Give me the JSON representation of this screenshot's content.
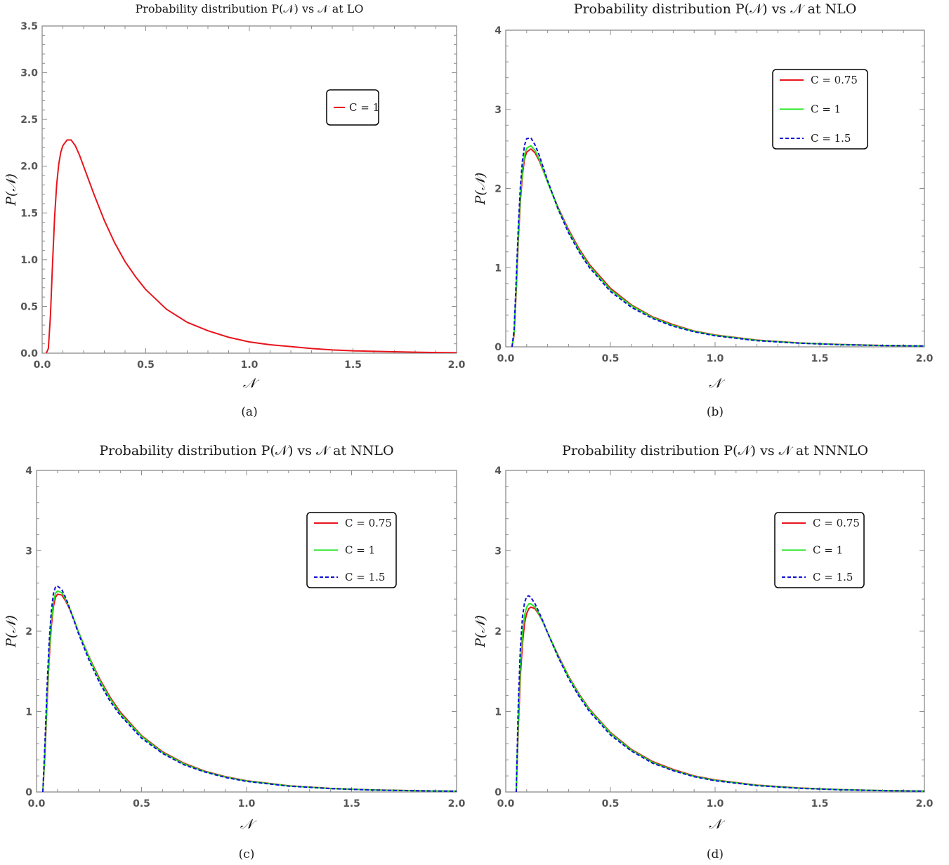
{
  "colors": {
    "c075": "#e8141b",
    "c1": "#22e622",
    "c15": "#1010d6",
    "frame": "#8c8c8c"
  },
  "chart_data": [
    {
      "type": "line",
      "title": "Probability distribution P(𝒩) vs 𝒩 at LO",
      "caption": "(a)",
      "xlabel": "𝒩",
      "ylabel": "P(𝒩)",
      "xlim": [
        0,
        2.0
      ],
      "ylim": [
        0,
        3.5
      ],
      "xticks": [
        "0.0",
        "0.5",
        "1.0",
        "1.5",
        "2.0"
      ],
      "yticks": [
        "0.0",
        "0.5",
        "1.0",
        "1.5",
        "2.0",
        "2.5",
        "3.0",
        "3.5"
      ],
      "legend_position": "top-right",
      "series": [
        {
          "name": "C = 1",
          "color": "#e8141b",
          "dash": false,
          "x": [
            0.02,
            0.03,
            0.04,
            0.05,
            0.06,
            0.07,
            0.08,
            0.09,
            0.1,
            0.12,
            0.14,
            0.16,
            0.18,
            0.2,
            0.25,
            0.3,
            0.35,
            0.4,
            0.45,
            0.5,
            0.6,
            0.7,
            0.8,
            0.9,
            1.0,
            1.1,
            1.2,
            1.3,
            1.4,
            1.5,
            1.6,
            1.7,
            1.8,
            1.9,
            2.0
          ],
          "y": [
            0.0,
            0.05,
            0.4,
            0.95,
            1.45,
            1.8,
            2.02,
            2.15,
            2.22,
            2.28,
            2.28,
            2.22,
            2.12,
            2.0,
            1.7,
            1.42,
            1.18,
            0.98,
            0.82,
            0.68,
            0.47,
            0.33,
            0.24,
            0.17,
            0.12,
            0.09,
            0.07,
            0.05,
            0.035,
            0.025,
            0.02,
            0.015,
            0.01,
            0.007,
            0.005
          ]
        }
      ]
    },
    {
      "type": "line",
      "title": "Probability distribution P(𝒩) vs 𝒩 at NLO",
      "caption": "(b)",
      "xlabel": "𝒩",
      "ylabel": "P(𝒩)",
      "xlim": [
        0,
        2.0
      ],
      "ylim": [
        0,
        4
      ],
      "xticks": [
        "0.0",
        "0.5",
        "1.0",
        "1.5",
        "2.0"
      ],
      "yticks": [
        "0",
        "1",
        "2",
        "3",
        "4"
      ],
      "legend_position": "top-right",
      "series": [
        {
          "name": "C = 0.75",
          "color": "#e8141b",
          "dash": false,
          "x": [
            0.03,
            0.04,
            0.05,
            0.06,
            0.07,
            0.08,
            0.09,
            0.1,
            0.12,
            0.14,
            0.16,
            0.18,
            0.2,
            0.25,
            0.3,
            0.35,
            0.4,
            0.5,
            0.6,
            0.7,
            0.8,
            0.9,
            1.0,
            1.2,
            1.4,
            1.6,
            1.8,
            2.0
          ],
          "y": [
            0.0,
            0.15,
            0.7,
            1.35,
            1.85,
            2.18,
            2.38,
            2.46,
            2.5,
            2.45,
            2.35,
            2.22,
            2.08,
            1.76,
            1.48,
            1.24,
            1.04,
            0.74,
            0.53,
            0.38,
            0.28,
            0.2,
            0.15,
            0.085,
            0.05,
            0.03,
            0.018,
            0.012
          ]
        },
        {
          "name": "C = 1",
          "color": "#22e622",
          "dash": false,
          "x": [
            0.03,
            0.04,
            0.05,
            0.06,
            0.07,
            0.08,
            0.09,
            0.1,
            0.12,
            0.14,
            0.16,
            0.18,
            0.2,
            0.25,
            0.3,
            0.35,
            0.4,
            0.5,
            0.6,
            0.7,
            0.8,
            0.9,
            1.0,
            1.2,
            1.4,
            1.6,
            1.8,
            2.0
          ],
          "y": [
            0.0,
            0.18,
            0.76,
            1.42,
            1.92,
            2.24,
            2.43,
            2.51,
            2.54,
            2.48,
            2.37,
            2.23,
            2.08,
            1.75,
            1.46,
            1.22,
            1.02,
            0.72,
            0.52,
            0.37,
            0.27,
            0.195,
            0.145,
            0.082,
            0.048,
            0.028,
            0.017,
            0.011
          ]
        },
        {
          "name": "C = 1.5",
          "color": "#1010d6",
          "dash": true,
          "x": [
            0.03,
            0.04,
            0.05,
            0.06,
            0.07,
            0.08,
            0.09,
            0.1,
            0.12,
            0.14,
            0.16,
            0.18,
            0.2,
            0.25,
            0.3,
            0.35,
            0.4,
            0.5,
            0.6,
            0.7,
            0.8,
            0.9,
            1.0,
            1.2,
            1.4,
            1.6,
            1.8,
            2.0
          ],
          "y": [
            0.0,
            0.22,
            0.85,
            1.52,
            2.03,
            2.36,
            2.55,
            2.63,
            2.64,
            2.55,
            2.42,
            2.26,
            2.1,
            1.74,
            1.44,
            1.2,
            1.0,
            0.7,
            0.5,
            0.36,
            0.26,
            0.19,
            0.14,
            0.078,
            0.046,
            0.027,
            0.016,
            0.01
          ]
        }
      ]
    },
    {
      "type": "line",
      "title": "Probability distribution P(𝒩) vs 𝒩 at NNLO",
      "caption": "(c)",
      "xlabel": "𝒩",
      "ylabel": "P(𝒩)",
      "xlim": [
        0,
        2.0
      ],
      "ylim": [
        0,
        4
      ],
      "xticks": [
        "0.0",
        "0.5",
        "1.0",
        "1.5",
        "2.0"
      ],
      "yticks": [
        "0",
        "1",
        "2",
        "3",
        "4"
      ],
      "legend_position": "top-right",
      "series": [
        {
          "name": "C = 0.75",
          "color": "#e8141b",
          "dash": false,
          "x": [
            0.03,
            0.04,
            0.05,
            0.06,
            0.07,
            0.08,
            0.09,
            0.1,
            0.12,
            0.14,
            0.16,
            0.18,
            0.2,
            0.25,
            0.3,
            0.35,
            0.4,
            0.5,
            0.6,
            0.7,
            0.8,
            0.9,
            1.0,
            1.2,
            1.4,
            1.6,
            1.8,
            2.0
          ],
          "y": [
            0.0,
            0.45,
            1.1,
            1.65,
            2.05,
            2.3,
            2.42,
            2.46,
            2.45,
            2.37,
            2.26,
            2.13,
            1.99,
            1.68,
            1.41,
            1.18,
            0.99,
            0.7,
            0.5,
            0.36,
            0.26,
            0.19,
            0.14,
            0.078,
            0.045,
            0.026,
            0.016,
            0.01
          ]
        },
        {
          "name": "C = 1",
          "color": "#22e622",
          "dash": false,
          "x": [
            0.03,
            0.04,
            0.05,
            0.06,
            0.07,
            0.08,
            0.09,
            0.1,
            0.12,
            0.14,
            0.16,
            0.18,
            0.2,
            0.25,
            0.3,
            0.35,
            0.4,
            0.5,
            0.6,
            0.7,
            0.8,
            0.9,
            1.0,
            1.2,
            1.4,
            1.6,
            1.8,
            2.0
          ],
          "y": [
            0.0,
            0.5,
            1.17,
            1.72,
            2.12,
            2.36,
            2.47,
            2.5,
            2.48,
            2.39,
            2.27,
            2.13,
            1.99,
            1.67,
            1.39,
            1.16,
            0.97,
            0.69,
            0.49,
            0.35,
            0.255,
            0.185,
            0.136,
            0.075,
            0.043,
            0.025,
            0.015,
            0.01
          ]
        },
        {
          "name": "C = 1.5",
          "color": "#1010d6",
          "dash": true,
          "x": [
            0.03,
            0.04,
            0.05,
            0.06,
            0.07,
            0.08,
            0.09,
            0.1,
            0.12,
            0.14,
            0.16,
            0.18,
            0.2,
            0.25,
            0.3,
            0.35,
            0.4,
            0.5,
            0.6,
            0.7,
            0.8,
            0.9,
            1.0,
            1.2,
            1.4,
            1.6,
            1.8,
            2.0
          ],
          "y": [
            0.0,
            0.6,
            1.3,
            1.86,
            2.24,
            2.46,
            2.55,
            2.56,
            2.52,
            2.41,
            2.27,
            2.12,
            1.97,
            1.64,
            1.36,
            1.13,
            0.95,
            0.67,
            0.48,
            0.34,
            0.25,
            0.18,
            0.132,
            0.073,
            0.042,
            0.024,
            0.015,
            0.009
          ]
        }
      ]
    },
    {
      "type": "line",
      "title": "Probability distribution P(𝒩)  vs 𝒩 at NNNLO",
      "caption": "(d)",
      "xlabel": "𝒩",
      "ylabel": "P(𝒩)",
      "xlim": [
        0,
        2.0
      ],
      "ylim": [
        0,
        4
      ],
      "xticks": [
        "0.0",
        "0.5",
        "1.0",
        "1.5",
        "2.0"
      ],
      "yticks": [
        "0",
        "1",
        "2",
        "3",
        "4"
      ],
      "legend_position": "top-right",
      "series": [
        {
          "name": "C = 0.75",
          "color": "#e8141b",
          "dash": false,
          "x": [
            0.05,
            0.06,
            0.07,
            0.08,
            0.09,
            0.1,
            0.11,
            0.12,
            0.14,
            0.16,
            0.18,
            0.2,
            0.25,
            0.3,
            0.35,
            0.4,
            0.5,
            0.6,
            0.7,
            0.8,
            0.9,
            1.0,
            1.2,
            1.4,
            1.6,
            1.8,
            2.0
          ],
          "y": [
            0.0,
            0.8,
            1.45,
            1.85,
            2.1,
            2.22,
            2.28,
            2.3,
            2.28,
            2.2,
            2.1,
            1.98,
            1.7,
            1.44,
            1.22,
            1.03,
            0.74,
            0.53,
            0.38,
            0.28,
            0.2,
            0.15,
            0.085,
            0.05,
            0.03,
            0.018,
            0.012
          ]
        },
        {
          "name": "C = 1",
          "color": "#22e622",
          "dash": false,
          "x": [
            0.05,
            0.06,
            0.07,
            0.08,
            0.09,
            0.1,
            0.11,
            0.12,
            0.14,
            0.16,
            0.18,
            0.2,
            0.25,
            0.3,
            0.35,
            0.4,
            0.5,
            0.6,
            0.7,
            0.8,
            0.9,
            1.0,
            1.2,
            1.4,
            1.6,
            1.8,
            2.0
          ],
          "y": [
            0.0,
            0.9,
            1.58,
            1.98,
            2.2,
            2.3,
            2.34,
            2.34,
            2.3,
            2.21,
            2.1,
            1.98,
            1.69,
            1.43,
            1.21,
            1.02,
            0.73,
            0.52,
            0.37,
            0.27,
            0.195,
            0.145,
            0.082,
            0.048,
            0.028,
            0.017,
            0.011
          ]
        },
        {
          "name": "C = 1.5",
          "color": "#1010d6",
          "dash": true,
          "x": [
            0.05,
            0.06,
            0.07,
            0.08,
            0.09,
            0.1,
            0.11,
            0.12,
            0.14,
            0.16,
            0.18,
            0.2,
            0.25,
            0.3,
            0.35,
            0.4,
            0.5,
            0.6,
            0.7,
            0.8,
            0.9,
            1.0,
            1.2,
            1.4,
            1.6,
            1.8,
            2.0
          ],
          "y": [
            0.0,
            1.1,
            1.8,
            2.18,
            2.36,
            2.43,
            2.44,
            2.42,
            2.34,
            2.23,
            2.11,
            1.98,
            1.68,
            1.41,
            1.19,
            1.0,
            0.71,
            0.51,
            0.36,
            0.265,
            0.19,
            0.14,
            0.079,
            0.046,
            0.027,
            0.016,
            0.01
          ]
        }
      ]
    }
  ]
}
